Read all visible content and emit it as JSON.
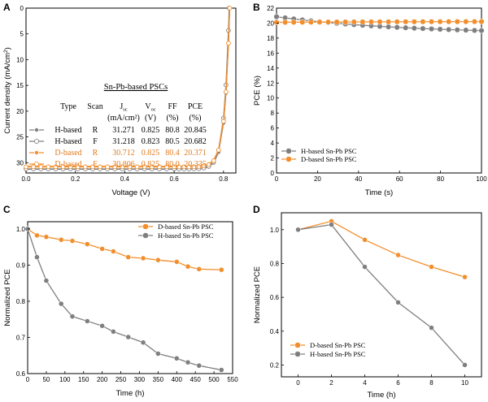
{
  "chart_data": [
    {
      "panel": "A",
      "type": "line",
      "xlabel": "Voltage (V)",
      "ylabel": "Current density (mA/cm²)",
      "ylabel_parts": {
        "main": "Current density (mA/cm",
        "sup": "2",
        "end": ")"
      },
      "xlim": [
        0.0,
        0.85
      ],
      "ylim": [
        0,
        32
      ],
      "ylim_inverted": true,
      "xticks": [
        "0.0",
        "0.2",
        "0.4",
        "0.6",
        "0.8"
      ],
      "xtick_values": [
        0.0,
        0.2,
        0.4,
        0.6,
        0.8
      ],
      "yticks": [
        "0",
        "5",
        "10",
        "15",
        "20",
        "25",
        "30"
      ],
      "ytick_values": [
        0,
        5,
        10,
        15,
        20,
        25,
        30
      ],
      "table": {
        "title": "Sn-Pb-based PSCs",
        "headers": [
          "Type",
          "Scan",
          "J",
          "V",
          "FF",
          "PCE"
        ],
        "header_subs": [
          "",
          "",
          "sc",
          "oc",
          "",
          ""
        ],
        "units": [
          "",
          "",
          "(mA/cm²)",
          "(V)",
          "(%)",
          "(%)"
        ],
        "rows": [
          [
            "H-based",
            "R",
            "31.271",
            "0.825",
            "80.8",
            "20.845"
          ],
          [
            "H-based",
            "F",
            "31.218",
            "0.823",
            "80.5",
            "20.682"
          ],
          [
            "D-based",
            "R",
            "30.712",
            "0.825",
            "80.4",
            "20.371"
          ],
          [
            "D-based",
            "F",
            "30.806",
            "0.825",
            "80.0",
            "20.335"
          ]
        ]
      },
      "series": [
        {
          "color": "#7f7f7f",
          "marker": "filled",
          "jsc": 31.271,
          "voc": 0.825
        },
        {
          "color": "#7f7f7f",
          "marker": "open",
          "jsc": 31.218,
          "voc": 0.823
        },
        {
          "color": "#f28e2b",
          "marker": "filled",
          "jsc": 30.712,
          "voc": 0.825
        },
        {
          "color": "#f28e2b",
          "marker": "open",
          "jsc": 30.806,
          "voc": 0.825
        }
      ]
    },
    {
      "panel": "B",
      "type": "line",
      "xlabel": "Time (s)",
      "ylabel": "PCE (%)",
      "xlim": [
        0,
        100
      ],
      "ylim": [
        0,
        22
      ],
      "xticks": [
        "0",
        "20",
        "40",
        "60",
        "80",
        "100"
      ],
      "xtick_values": [
        0,
        20,
        40,
        60,
        80,
        100
      ],
      "yticks": [
        "0",
        "2",
        "4",
        "6",
        "8",
        "10",
        "12",
        "14",
        "16",
        "18",
        "20",
        "22"
      ],
      "ytick_values": [
        0,
        2,
        4,
        6,
        8,
        10,
        12,
        14,
        16,
        18,
        20,
        22
      ],
      "legend_position": "lower-left",
      "series": [
        {
          "name": "H-based Sn-Pb PSC",
          "color": "#7f7f7f",
          "start": 20.85,
          "end": 19.0
        },
        {
          "name": "D-based Sn-Pb PSC",
          "color": "#f28e2b",
          "start": 20.1,
          "end": 20.2
        }
      ]
    },
    {
      "panel": "C",
      "type": "line",
      "xlabel": "Time (h)",
      "ylabel": "Normalized PCE",
      "xlim": [
        0,
        550
      ],
      "ylim": [
        0.6,
        1.02
      ],
      "xticks": [
        "0",
        "50",
        "100",
        "150",
        "200",
        "250",
        "300",
        "350",
        "400",
        "450",
        "500",
        "550"
      ],
      "xtick_values": [
        0,
        50,
        100,
        150,
        200,
        250,
        300,
        350,
        400,
        450,
        500,
        550
      ],
      "yticks": [
        "0.6",
        "0.7",
        "0.8",
        "0.9",
        "1.0"
      ],
      "ytick_values": [
        0.6,
        0.7,
        0.8,
        0.9,
        1.0
      ],
      "legend_position": "top-right",
      "series": [
        {
          "name": "D-based Sn-Pb PSC",
          "color": "#f28e2b",
          "x": [
            0,
            25,
            50,
            90,
            120,
            160,
            200,
            230,
            270,
            310,
            350,
            400,
            430,
            460,
            520
          ],
          "y": [
            1.0,
            0.982,
            0.978,
            0.97,
            0.967,
            0.958,
            0.945,
            0.938,
            0.922,
            0.919,
            0.914,
            0.909,
            0.896,
            0.889,
            0.887
          ]
        },
        {
          "name": "H-based Sn-Pb PSC",
          "color": "#7f7f7f",
          "x": [
            0,
            25,
            50,
            90,
            120,
            160,
            200,
            230,
            270,
            310,
            350,
            400,
            430,
            460,
            520
          ],
          "y": [
            1.0,
            0.922,
            0.857,
            0.793,
            0.758,
            0.745,
            0.732,
            0.716,
            0.701,
            0.686,
            0.655,
            0.642,
            0.631,
            0.622,
            0.61
          ]
        }
      ]
    },
    {
      "panel": "D",
      "type": "line",
      "xlabel": "Time (h)",
      "ylabel": "Normalized PCE",
      "xlim": [
        -1,
        11
      ],
      "ylim": [
        0.13,
        1.1
      ],
      "xticks": [
        "0",
        "2",
        "4",
        "6",
        "8",
        "10"
      ],
      "xtick_values": [
        0,
        2,
        4,
        6,
        8,
        10
      ],
      "yticks": [
        "0.2",
        "0.4",
        "0.6",
        "0.8",
        "1.0"
      ],
      "ytick_values": [
        0.2,
        0.4,
        0.6,
        0.8,
        1.0
      ],
      "legend_position": "lower-left",
      "series": [
        {
          "name": "D-based Sn-Pb PSC",
          "color": "#f28e2b",
          "x": [
            0,
            2,
            4,
            6,
            8,
            10
          ],
          "y": [
            1.0,
            1.05,
            0.94,
            0.85,
            0.78,
            0.72
          ]
        },
        {
          "name": "H-based Sn-Pb PSC",
          "color": "#7f7f7f",
          "x": [
            0,
            2,
            4,
            6,
            8,
            10
          ],
          "y": [
            1.0,
            1.03,
            0.78,
            0.57,
            0.42,
            0.2
          ]
        }
      ]
    }
  ],
  "panel_labels": [
    "A",
    "B",
    "C",
    "D"
  ]
}
